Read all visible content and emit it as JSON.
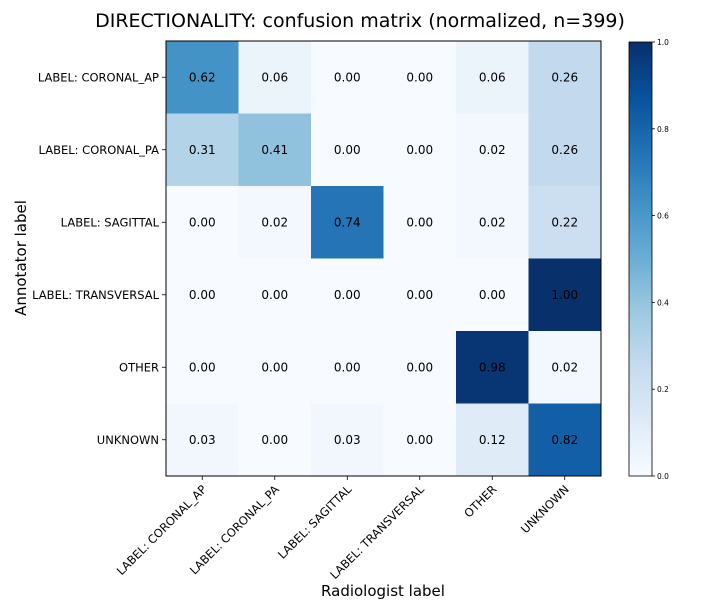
{
  "chart_data": {
    "type": "heatmap",
    "title": "DIRECTIONALITY: confusion matrix (normalized, n=399)",
    "xlabel": "Radiologist label",
    "ylabel": "Annotator label",
    "x_categories": [
      "LABEL: CORONAL_AP",
      "LABEL: CORONAL_PA",
      "LABEL: SAGITTAL",
      "LABEL: TRANSVERSAL",
      "OTHER",
      "UNKNOWN"
    ],
    "y_categories": [
      "LABEL: CORONAL_AP",
      "LABEL: CORONAL_PA",
      "LABEL: SAGITTAL",
      "LABEL: TRANSVERSAL",
      "OTHER",
      "UNKNOWN"
    ],
    "values": [
      [
        0.62,
        0.06,
        0.0,
        0.0,
        0.06,
        0.26
      ],
      [
        0.31,
        0.41,
        0.0,
        0.0,
        0.02,
        0.26
      ],
      [
        0.0,
        0.02,
        0.74,
        0.0,
        0.02,
        0.22
      ],
      [
        0.0,
        0.0,
        0.0,
        0.0,
        0.0,
        1.0
      ],
      [
        0.0,
        0.0,
        0.0,
        0.0,
        0.98,
        0.02
      ],
      [
        0.03,
        0.0,
        0.03,
        0.0,
        0.12,
        0.82
      ]
    ],
    "value_labels": [
      [
        "0.62",
        "0.06",
        "0.00",
        "0.00",
        "0.06",
        "0.26"
      ],
      [
        "0.31",
        "0.41",
        "0.00",
        "0.00",
        "0.02",
        "0.26"
      ],
      [
        "0.00",
        "0.02",
        "0.74",
        "0.00",
        "0.02",
        "0.22"
      ],
      [
        "0.00",
        "0.00",
        "0.00",
        "0.00",
        "0.00",
        "1.00"
      ],
      [
        "0.00",
        "0.00",
        "0.00",
        "0.00",
        "0.98",
        "0.02"
      ],
      [
        "0.03",
        "0.00",
        "0.03",
        "0.00",
        "0.12",
        "0.82"
      ]
    ],
    "colormap": "Blues",
    "colorbar": {
      "range": [
        0.0,
        1.0
      ],
      "ticks": [
        "0.0",
        "0.2",
        "0.4",
        "0.6",
        "0.8",
        "1.0"
      ]
    }
  }
}
